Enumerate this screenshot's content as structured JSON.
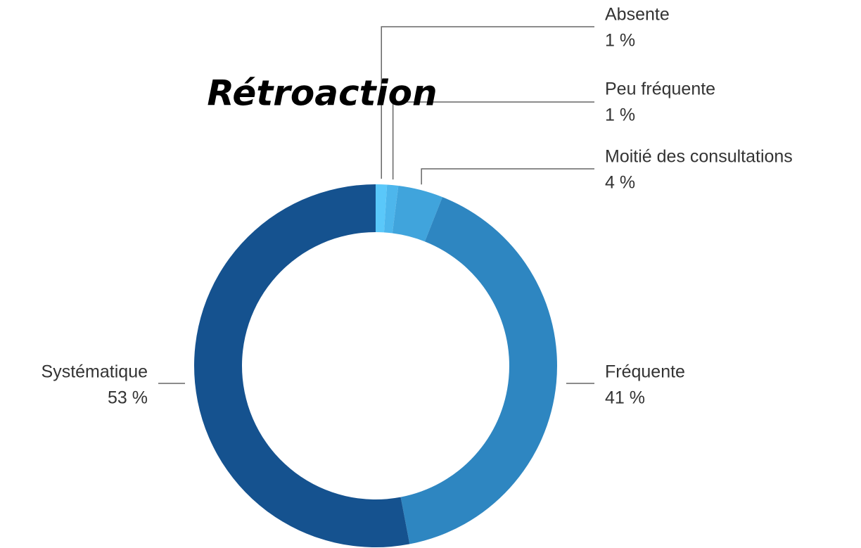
{
  "chart_data": {
    "type": "donut",
    "title": "Rétroaction",
    "categories": [
      "Absente",
      "Peu fréquente",
      "Moitié des consultations",
      "Fréquente",
      "Systématique"
    ],
    "values": [
      1,
      1,
      4,
      41,
      53
    ],
    "value_labels": [
      "1 %",
      "1 %",
      "4 %",
      "41 %",
      "53 %"
    ],
    "colors": [
      "#5ac8fa",
      "#4db6ec",
      "#40a4dc",
      "#2e86c1",
      "#15528f"
    ]
  }
}
